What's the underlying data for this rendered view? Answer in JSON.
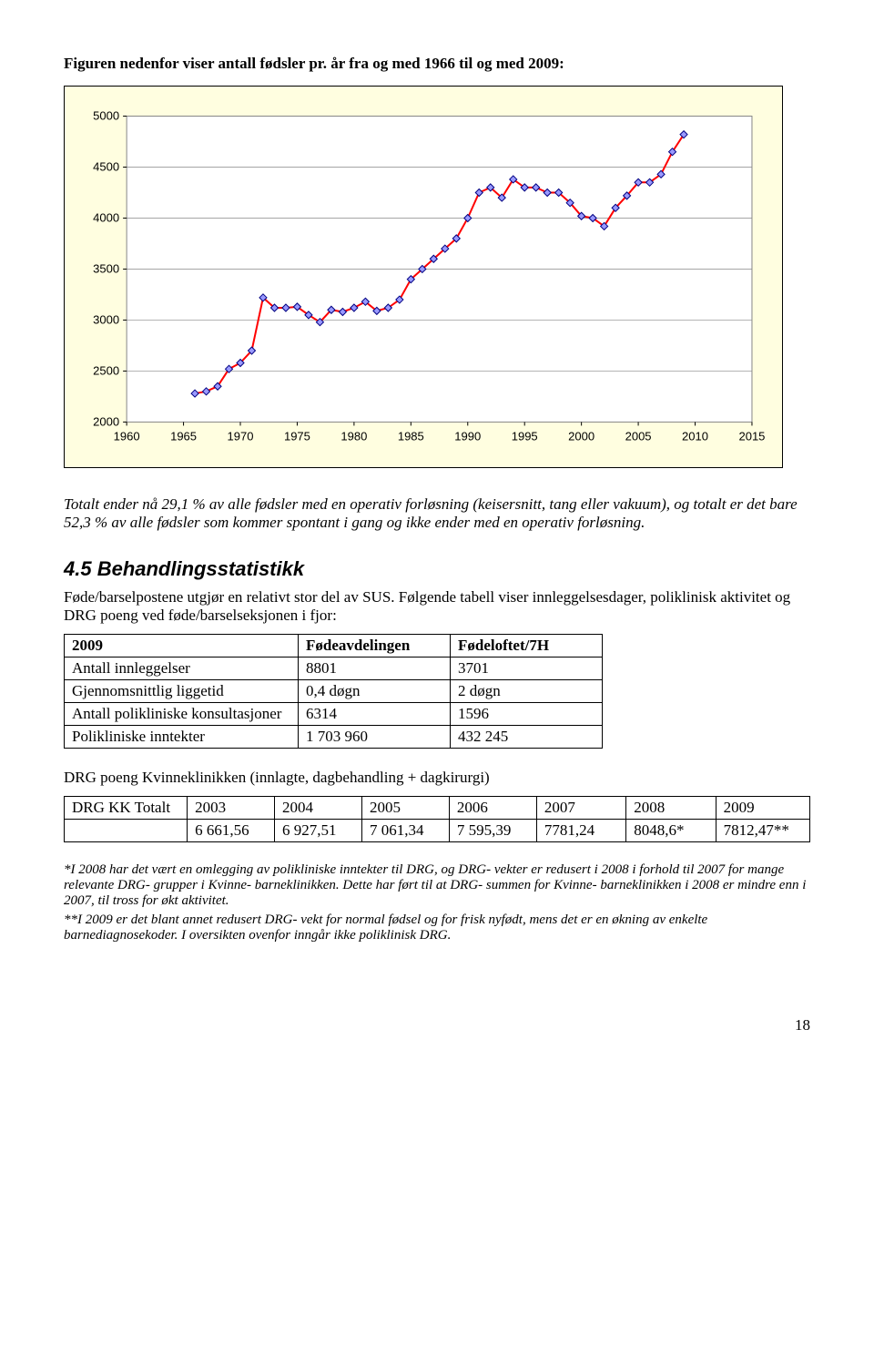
{
  "intro": "Figuren nedenfor viser antall fødsler pr. år fra og med 1966 til og med 2009:",
  "chart": {
    "background_color": "#fffee0",
    "plot_background": "#ffffff",
    "grid_color": "#878787",
    "border_color": "#878787",
    "series_line_color": "#ff0000",
    "series_line_width": 2,
    "marker_color": "#9999ff",
    "marker_border": "#000080",
    "marker_size": 8,
    "y_min": 2000,
    "y_max": 5000,
    "y_step": 500,
    "x_min": 1960,
    "x_max": 2015,
    "x_step": 5,
    "axis_fontsize": 13,
    "years": [
      1966,
      1967,
      1968,
      1969,
      1970,
      1971,
      1972,
      1973,
      1974,
      1975,
      1976,
      1977,
      1978,
      1979,
      1980,
      1981,
      1982,
      1983,
      1984,
      1985,
      1986,
      1987,
      1988,
      1989,
      1990,
      1991,
      1992,
      1993,
      1994,
      1995,
      1996,
      1997,
      1998,
      1999,
      2000,
      2001,
      2002,
      2003,
      2004,
      2005,
      2006,
      2007,
      2008,
      2009
    ],
    "values": [
      2280,
      2300,
      2350,
      2520,
      2580,
      2700,
      3220,
      3120,
      3120,
      3130,
      3050,
      2980,
      3100,
      3080,
      3120,
      3180,
      3090,
      3120,
      3200,
      3400,
      3500,
      3600,
      3700,
      3800,
      4000,
      4250,
      4300,
      4200,
      4380,
      4300,
      4300,
      4250,
      4250,
      4150,
      4020,
      4000,
      3920,
      4100,
      4220,
      4350,
      4350,
      4430,
      4650,
      4820
    ]
  },
  "body1a": "Totalt ender nå 29,1 % av alle fødsler med en operativ forløsning (keisersnitt, tang eller vakuum), og totalt er det bare 52,3 % av alle fødsler som kommer spontant i gang og ikke ender med en operativ forløsning.",
  "section_title": "4.5 Behandlingsstatistikk",
  "section_para": "Føde/barselpostene utgjør en relativt stor del av SUS. Følgende tabell viser innleggelsesdager, poliklinisk aktivitet og DRG poeng ved føde/barselseksjonen i fjor:",
  "table1": {
    "headers": [
      "2009",
      "Fødeavdelingen",
      "Fødeloftet/7H"
    ],
    "rows": [
      [
        "Antall innleggelser",
        "8801",
        "3701"
      ],
      [
        "Gjennomsnittlig liggetid",
        "0,4 døgn",
        "2 døgn"
      ],
      [
        "Antall polikliniske konsultasjoner",
        "6314",
        "1596"
      ],
      [
        "Polikliniske inntekter",
        "1 703 960",
        "432 245"
      ]
    ]
  },
  "drg_caption": "DRG poeng Kvinneklinikken (innlagte, dagbehandling + dagkirurgi)",
  "table2": {
    "headers": [
      "DRG KK Totalt",
      "2003",
      "2004",
      "2005",
      "2006",
      "2007",
      "2008",
      "2009"
    ],
    "rows": [
      [
        "",
        "6 661,56",
        "6 927,51",
        "7 061,34",
        "7 595,39",
        "7781,24",
        "8048,6*",
        "7812,47**"
      ]
    ]
  },
  "footnote1": "*I 2008 har det vært en omlegging av polikliniske inntekter til DRG, og DRG- vekter er redusert i 2008 i forhold til 2007 for mange relevante DRG- grupper i Kvinne- barneklinikken. Dette har ført til at DRG- summen for Kvinne- barneklinikken i 2008 er mindre enn i 2007, til tross for økt aktivitet.",
  "footnote2": "**I 2009 er det blant annet redusert DRG- vekt for normal fødsel og for frisk nyfødt, mens det er en økning av enkelte barnediagnosekoder. I oversikten ovenfor inngår ikke poliklinisk DRG.",
  "page_number": "18"
}
